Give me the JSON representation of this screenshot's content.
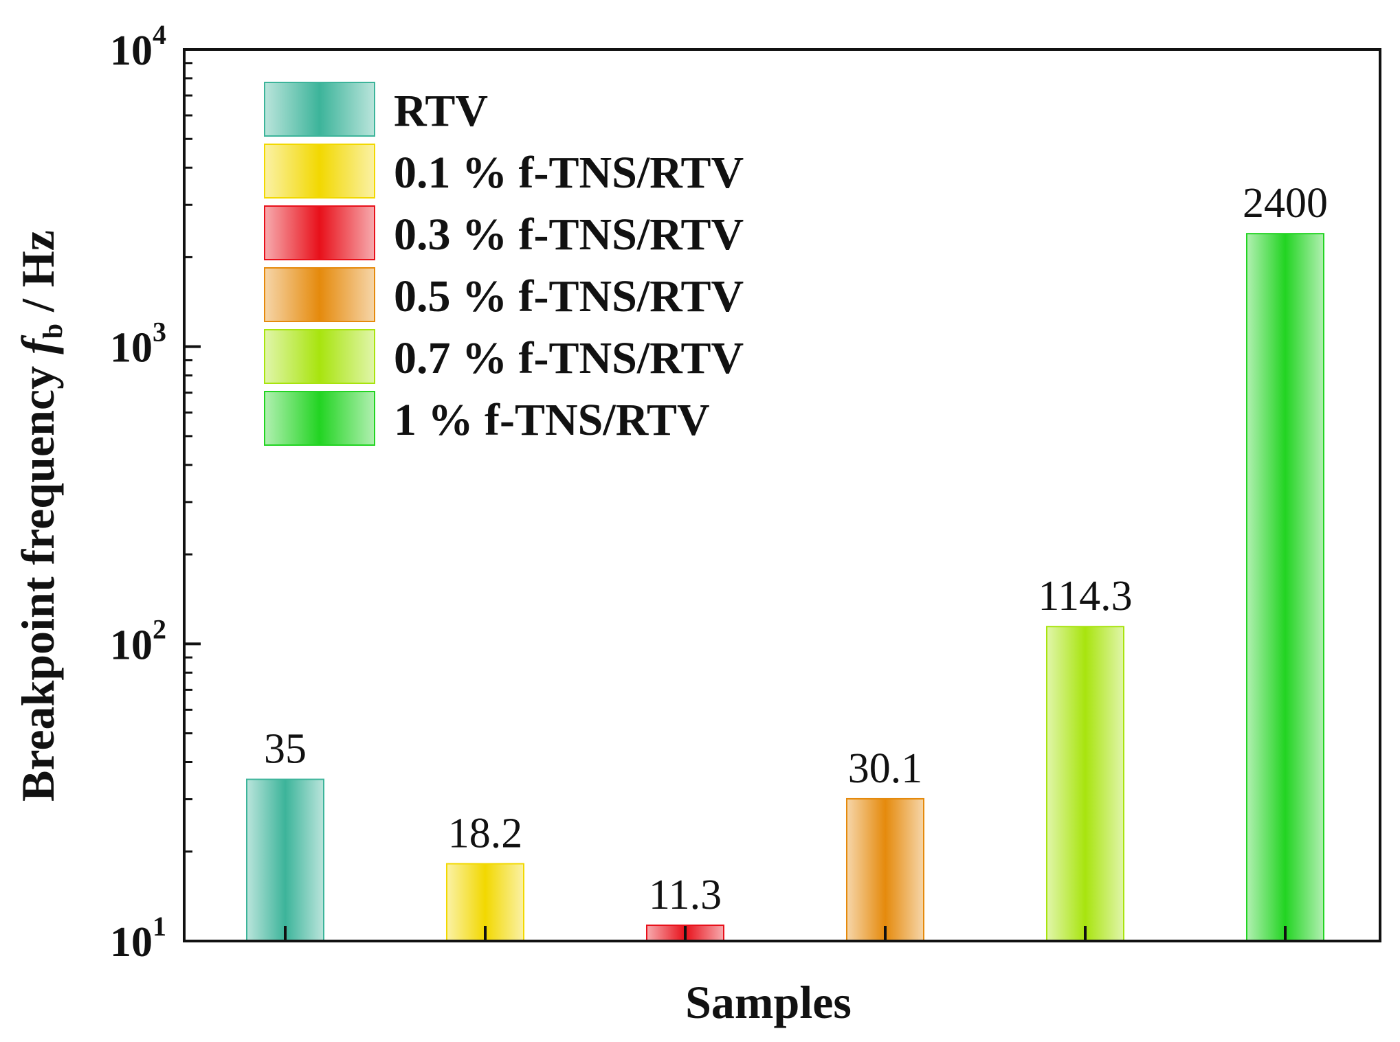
{
  "chart_data": {
    "type": "bar",
    "scale": "log",
    "title": "",
    "xlabel": "Samples",
    "ylabel": {
      "prefix": "Breakpoint frequency ",
      "symbol": "f",
      "subscript": "b",
      "suffix": " / Hz"
    },
    "ylim": [
      10,
      10000
    ],
    "yticks": [
      {
        "base": "10",
        "exp": "1",
        "value": 10
      },
      {
        "base": "10",
        "exp": "2",
        "value": 100
      },
      {
        "base": "10",
        "exp": "3",
        "value": 1000
      },
      {
        "base": "10",
        "exp": "4",
        "value": 10000
      }
    ],
    "categories": [
      "RTV",
      "0.1 % f-TNS/RTV",
      "0.3 % f-TNS/RTV",
      "0.5 % f-TNS/RTV",
      "0.7 % f-TNS/RTV",
      "1 % f-TNS/RTV"
    ],
    "values": [
      35,
      18.2,
      11.3,
      30.1,
      114.3,
      2400
    ],
    "value_labels": [
      "35",
      "18.2",
      "11.3",
      "30.1",
      "114.3",
      "2400"
    ],
    "colors": [
      "#3cb49a",
      "#f2d800",
      "#e8101a",
      "#e58a0c",
      "#a8e40e",
      "#22d422"
    ],
    "legend": {
      "placement": "top-left",
      "entries": [
        "RTV",
        "0.1 % f-TNS/RTV",
        "0.3 % f-TNS/RTV",
        "0.5 % f-TNS/RTV",
        "0.7 % f-TNS/RTV",
        "1 % f-TNS/RTV"
      ]
    },
    "grid": false
  }
}
